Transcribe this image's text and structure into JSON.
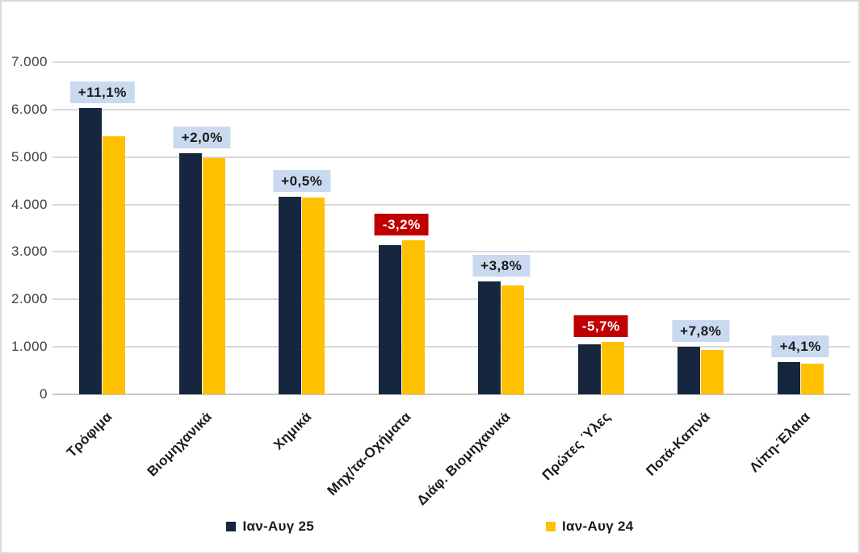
{
  "window": {
    "background": "#FFFFFF",
    "border_color": "#D9D9D9"
  },
  "chart_data": {
    "type": "bar",
    "title": "",
    "categories": [
      "Τρόφιμα",
      "Βιομηχανικά",
      "Χημικά",
      "Μηχ/τα-Οχήματα",
      "Διάφ. Βιομηχανικά",
      "Πρώτες Ύλες",
      "Ποτά-Καπνά",
      "Λίπη-Έλαια"
    ],
    "series": [
      {
        "name": "Ιαν-Αυγ 25",
        "color": "#16263E",
        "values": [
          6030,
          5080,
          4160,
          3140,
          2380,
          1047,
          1010,
          677
        ]
      },
      {
        "name": "Ιαν-Αυγ 24",
        "color": "#FFC000",
        "values": [
          5430,
          4980,
          4140,
          3245,
          2293,
          1110,
          937,
          650
        ]
      }
    ],
    "change_labels": [
      "+11,1%",
      "+2,0%",
      "+0,5%",
      "-3,2%",
      "+3,8%",
      "-5,7%",
      "+7,8%",
      "+4,1%"
    ],
    "y_ticks": [
      {
        "value": 7000,
        "label": "7.000"
      },
      {
        "value": 6000,
        "label": "6.000"
      },
      {
        "value": 5000,
        "label": "5.000"
      },
      {
        "value": 4000,
        "label": "4.000"
      },
      {
        "value": 3000,
        "label": "3.000"
      },
      {
        "value": 2000,
        "label": "2.000"
      },
      {
        "value": 1000,
        "label": "1.000"
      },
      {
        "value": 0,
        "label": "0"
      }
    ],
    "ylim": [
      0,
      7000
    ],
    "grid": true,
    "legend_position": "bottom",
    "colors": {
      "grid": "#D9D9D9",
      "axis_line": "#C8C8C8",
      "tick_text": "#3F3F3F",
      "category_text": "#1A1A1A",
      "label_positive_bg": "#C9DAF0",
      "label_positive_text": "#1A1A1A",
      "label_negative_bg": "#C00000",
      "label_negative_text": "#FFFFFF",
      "legend_text": "#1A1A1A"
    }
  }
}
